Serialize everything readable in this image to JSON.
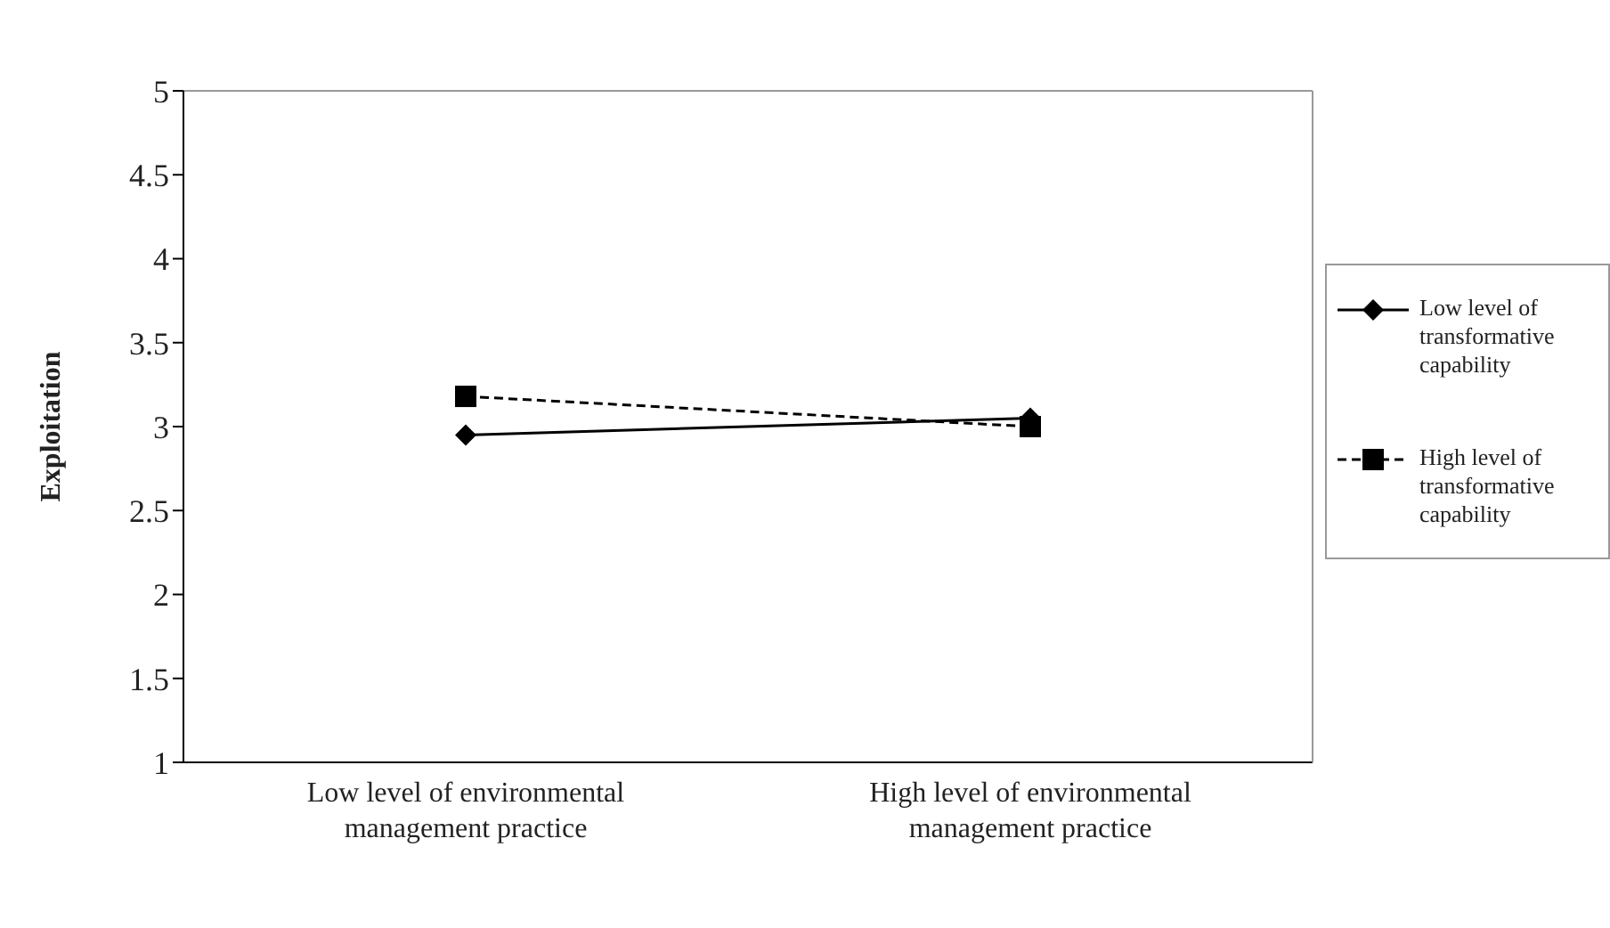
{
  "chart_data": {
    "type": "line",
    "ylabel": "Exploitation",
    "categories": [
      "Low level of environmental management practice",
      "High level of environmental management practice"
    ],
    "series": [
      {
        "name": "Low level of transformative capability",
        "color": "#000000",
        "values": [
          2.95,
          3.05
        ],
        "marker": "diamond",
        "line_style": "solid"
      },
      {
        "name": "High level of transformative capability",
        "color": "#000000",
        "values": [
          3.18,
          3.0
        ],
        "marker": "square",
        "line_style": "dashed"
      }
    ],
    "ylim": [
      1,
      5
    ],
    "yticks": [
      1,
      1.5,
      2,
      2.5,
      3,
      3.5,
      4,
      4.5,
      5
    ],
    "grid": false,
    "legend": "right"
  }
}
